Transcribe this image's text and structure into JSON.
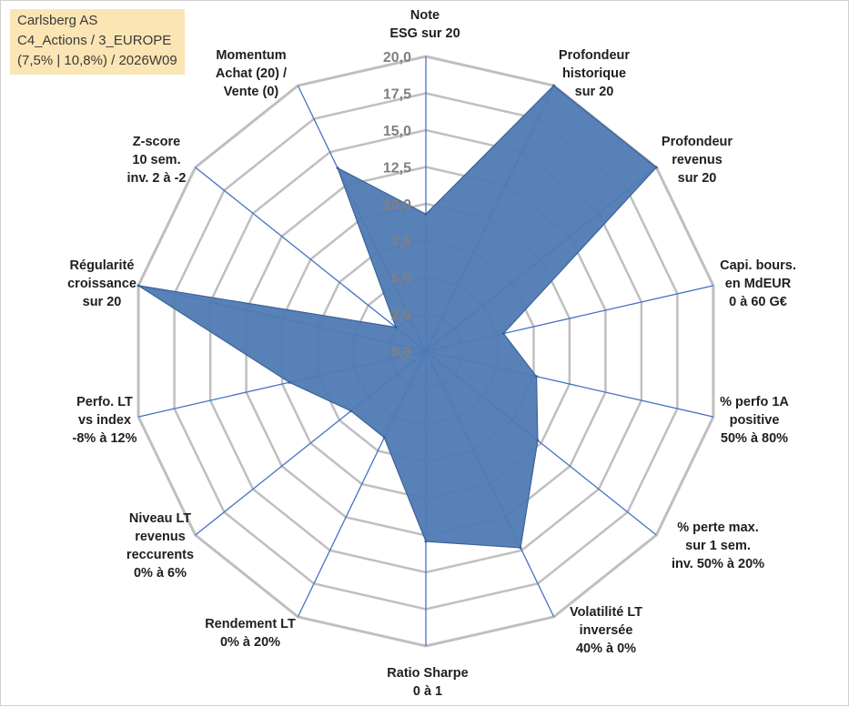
{
  "title_box": {
    "line1": "Carlsberg AS",
    "line2": "C4_Actions / 3_EUROPE",
    "line3": "(7,5% | 10,8%) / 2026W09"
  },
  "chart_data": {
    "type": "radar",
    "scale_min": 0,
    "scale_max": 20,
    "tick_labels": [
      "0,0",
      "2,5",
      "5,0",
      "7,5",
      "10,0",
      "12,5",
      "15,0",
      "17,5",
      "20,0"
    ],
    "axes": [
      {
        "lines": [
          "Note",
          "ESG sur 20"
        ],
        "value": 9.3
      },
      {
        "lines": [
          "Profondeur",
          "historique",
          "sur 20"
        ],
        "value": 20.0
      },
      {
        "lines": [
          "Profondeur",
          "revenus",
          "sur 20"
        ],
        "value": 20.0
      },
      {
        "lines": [
          "Capi. bours.",
          "en MdEUR",
          "0 à 60 G€"
        ],
        "value": 5.4
      },
      {
        "lines": [
          "% perfo 1A",
          "positive",
          "50% à 80%"
        ],
        "value": 7.7
      },
      {
        "lines": [
          "% perte max.",
          "sur 1 sem.",
          "inv. 50% à 20%"
        ],
        "value": 9.7
      },
      {
        "lines": [
          "Volatilité LT",
          "inversée",
          "40% à 0%"
        ],
        "value": 14.8
      },
      {
        "lines": [
          "Ratio Sharpe",
          "0 à 1"
        ],
        "value": 12.9
      },
      {
        "lines": [
          "Rendement LT",
          "0% à 20%"
        ],
        "value": 6.5
      },
      {
        "lines": [
          "Niveau LT",
          "revenus",
          "reccurents",
          "0% à 6%"
        ],
        "value": 6.5
      },
      {
        "lines": [
          "Perfo. LT",
          "vs index",
          "-8% à 12%"
        ],
        "value": 9.5
      },
      {
        "lines": [
          "Régularité",
          "croissance",
          "sur 20"
        ],
        "value": 20.0
      },
      {
        "lines": [
          "Z-score",
          "10 sem.",
          "inv. 2 à -2"
        ],
        "value": 2.6
      },
      {
        "lines": [
          "Momentum",
          "Achat (20) /",
          "Vente (0)"
        ],
        "value": 13.8
      }
    ],
    "colors": {
      "fill": "#4f7ab3",
      "stroke": "#3b6299",
      "grid": "#bfbfbf",
      "spoke": "#4472c4",
      "tick": "#808080"
    }
  }
}
